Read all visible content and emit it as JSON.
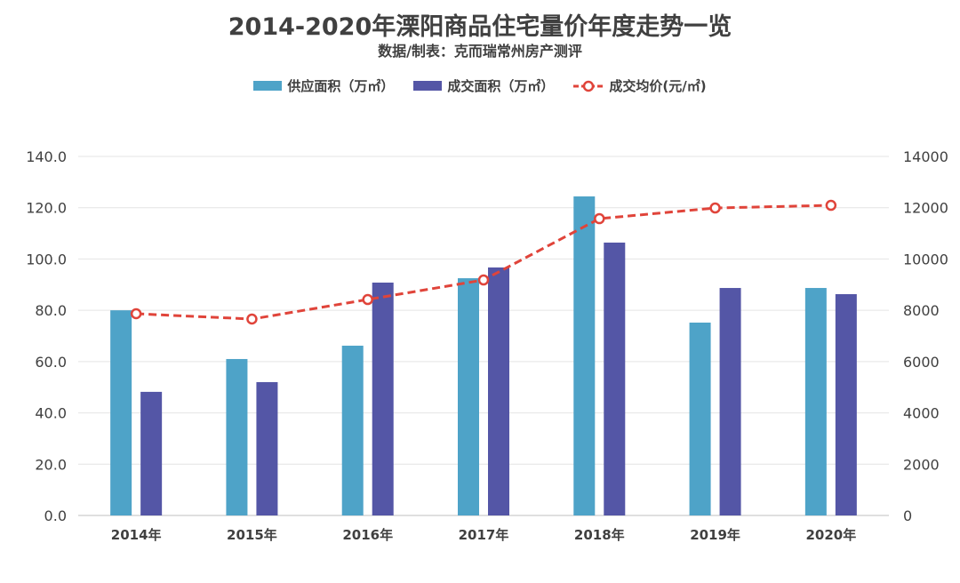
{
  "chart_data": {
    "type": "bar",
    "title": "2014-2020年溧阳商品住宅量价年度走势一览",
    "subtitle": "数据/制表：克而瑞常州房产测评",
    "categories": [
      "2014年",
      "2015年",
      "2016年",
      "2017年",
      "2018年",
      "2019年",
      "2020年"
    ],
    "series": [
      {
        "name": "供应面积（万㎡）",
        "type": "bar",
        "axis": "left",
        "color": "#4ea3c8",
        "values": [
          80.0,
          61.0,
          66.2,
          92.5,
          124.4,
          75.2,
          88.7
        ]
      },
      {
        "name": "成交面积（万㎡）",
        "type": "bar",
        "axis": "left",
        "color": "#5456a6",
        "values": [
          48.2,
          52.0,
          90.8,
          96.7,
          106.4,
          88.7,
          86.3
        ]
      },
      {
        "name": "成交均价(元/㎡)",
        "type": "line",
        "axis": "right",
        "color": "#e0443a",
        "values": [
          7866,
          7658,
          8420,
          9182,
          11573,
          11989,
          12093
        ]
      }
    ],
    "ylim": [
      0,
      140
    ],
    "y2lim": [
      0,
      14000
    ],
    "yticks": [
      "0.0",
      "20.0",
      "40.0",
      "60.0",
      "80.0",
      "100.0",
      "120.0",
      "140.0"
    ],
    "y2ticks": [
      "0",
      "2000",
      "4000",
      "6000",
      "8000",
      "10000",
      "12000",
      "14000"
    ],
    "grid": true,
    "legend": "top"
  }
}
